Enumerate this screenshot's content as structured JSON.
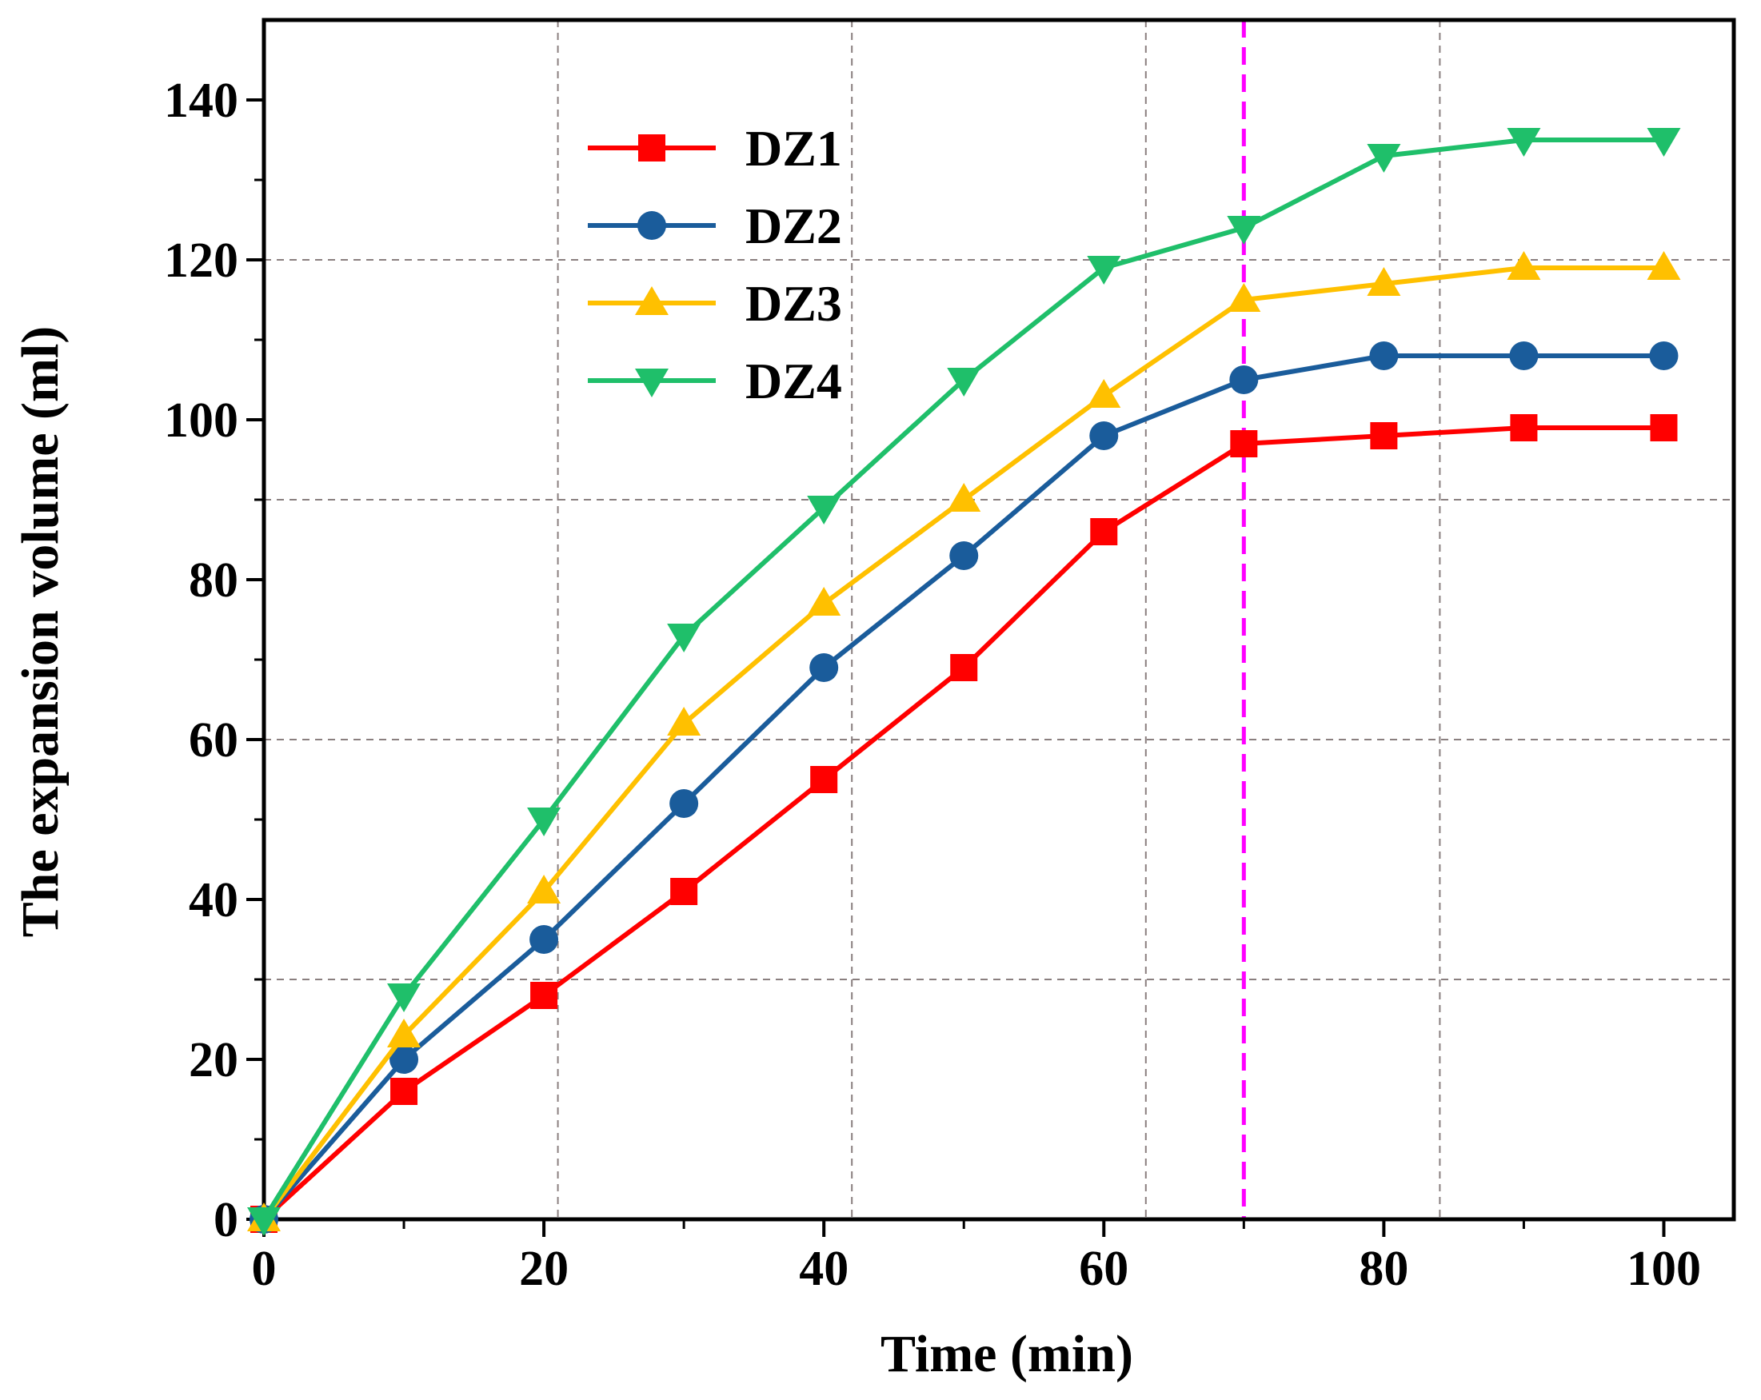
{
  "chart_data": {
    "type": "line",
    "title": "",
    "xlabel": "Time (min)",
    "ylabel": "The expansion volume (ml)",
    "xlim": [
      0,
      105
    ],
    "ylim": [
      0,
      150
    ],
    "xticks": [
      0,
      20,
      40,
      60,
      80,
      100
    ],
    "yticks": [
      0,
      20,
      40,
      60,
      80,
      100,
      120,
      140
    ],
    "x_tick_labels": [
      "0",
      "20",
      "40",
      "60",
      "80",
      "100"
    ],
    "y_tick_labels": [
      "0",
      "20",
      "40",
      "60",
      "80",
      "100",
      "120",
      "140"
    ],
    "grid": {
      "style": "dashed",
      "color": "#8a7f7f",
      "x_lines": [
        21,
        42,
        63,
        84
      ],
      "y_lines": [
        30,
        60,
        90,
        120
      ]
    },
    "reference_line": {
      "x": 70,
      "color": "#ff00ff",
      "style": "dashed"
    },
    "legend_position": "top-left",
    "x": [
      0,
      10,
      20,
      30,
      40,
      50,
      60,
      70,
      80,
      90,
      100
    ],
    "series": [
      {
        "name": "DZ1",
        "color": "#ff0000",
        "marker": "square",
        "values": [
          0,
          16,
          28,
          41,
          55,
          69,
          86,
          97,
          98,
          99,
          99
        ]
      },
      {
        "name": "DZ2",
        "color": "#1a5c9b",
        "marker": "circle",
        "values": [
          0,
          20,
          35,
          52,
          69,
          83,
          98,
          105,
          108,
          108,
          108
        ]
      },
      {
        "name": "DZ3",
        "color": "#ffc000",
        "marker": "triangle-up",
        "values": [
          0,
          23,
          41,
          62,
          77,
          90,
          103,
          115,
          117,
          119,
          119
        ]
      },
      {
        "name": "DZ4",
        "color": "#1fbf6a",
        "marker": "triangle-down",
        "values": [
          0,
          28,
          50,
          73,
          89,
          105,
          119,
          124,
          133,
          135,
          135
        ]
      }
    ]
  }
}
